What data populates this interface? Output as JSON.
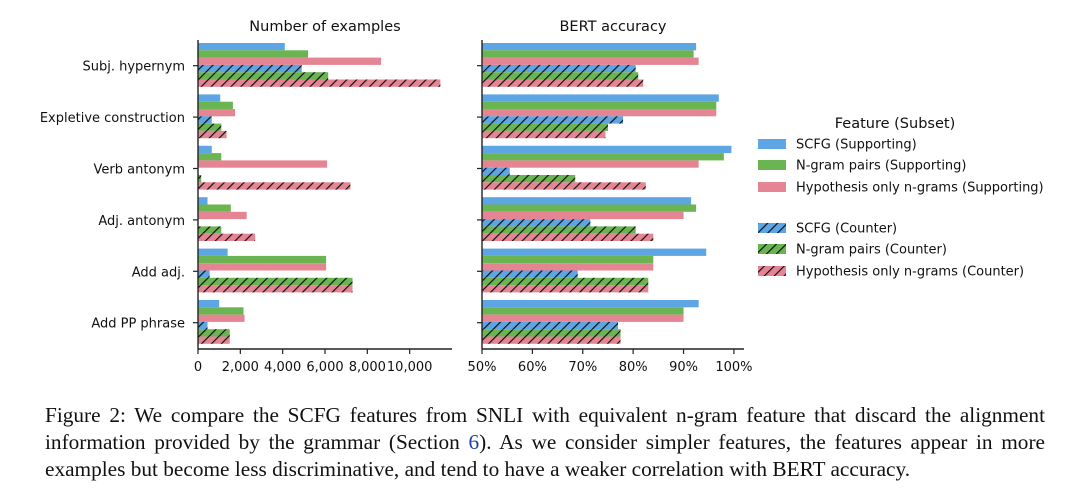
{
  "chart_data": [
    {
      "type": "bar",
      "orientation": "horizontal",
      "title": "Number of examples",
      "categories": [
        "Subj. hypernym",
        "Expletive construction",
        "Verb antonym",
        "Adj. antonym",
        "Add adj.",
        "Add PP phrase"
      ],
      "xlim": [
        0,
        12000
      ],
      "xticks": [
        0,
        2000,
        4000,
        6000,
        8000,
        10000
      ],
      "xtick_labels": [
        "0",
        "2,000",
        "4,000",
        "6,000",
        "8,000",
        "10,000"
      ],
      "series": [
        {
          "name": "SCFG (Supporting)",
          "values": [
            4100,
            1050,
            650,
            450,
            1400,
            1000
          ]
        },
        {
          "name": "N-gram pairs (Supporting)",
          "values": [
            5200,
            1650,
            1100,
            1550,
            6050,
            2150
          ]
        },
        {
          "name": "Hypothesis only n-grams (Supporting)",
          "values": [
            8650,
            1750,
            6100,
            2300,
            6050,
            2200
          ]
        },
        {
          "name": "SCFG (Counter)",
          "values": [
            4900,
            650,
            0,
            0,
            550,
            450
          ]
        },
        {
          "name": "N-gram pairs (Counter)",
          "values": [
            6150,
            1100,
            150,
            1100,
            7300,
            1500
          ]
        },
        {
          "name": "Hypothesis only n-grams (Counter)",
          "values": [
            11450,
            1350,
            7200,
            2700,
            7300,
            1500
          ]
        }
      ]
    },
    {
      "type": "bar",
      "orientation": "horizontal",
      "title": "BERT accuracy",
      "categories": [
        "Subj. hypernym",
        "Expletive construction",
        "Verb antonym",
        "Adj. antonym",
        "Add adj.",
        "Add PP phrase"
      ],
      "xlim": [
        50,
        102
      ],
      "xticks": [
        50,
        60,
        70,
        80,
        90,
        100
      ],
      "xtick_labels": [
        "50%",
        "60%",
        "70%",
        "80%",
        "90%",
        "100%"
      ],
      "series": [
        {
          "name": "SCFG (Supporting)",
          "values": [
            92.5,
            97,
            99.5,
            91.5,
            94.5,
            93
          ]
        },
        {
          "name": "N-gram pairs (Supporting)",
          "values": [
            92,
            96.5,
            98,
            92.5,
            84,
            90
          ]
        },
        {
          "name": "Hypothesis only n-grams (Supporting)",
          "values": [
            93,
            96.5,
            93,
            90,
            84,
            90
          ]
        },
        {
          "name": "SCFG (Counter)",
          "values": [
            80.5,
            78,
            55.5,
            71.5,
            69,
            77
          ]
        },
        {
          "name": "N-gram pairs (Counter)",
          "values": [
            81,
            75,
            68.5,
            80.5,
            83,
            77.5
          ]
        },
        {
          "name": "Hypothesis only n-grams (Counter)",
          "values": [
            82,
            74.5,
            82.5,
            84,
            83,
            77.5
          ]
        }
      ]
    }
  ],
  "legend": {
    "title": "Feature (Subset)",
    "placement": "right",
    "items": [
      {
        "label": "SCFG (Supporting)",
        "color": "#5da5e3",
        "hatched": false
      },
      {
        "label": "N-gram pairs (Supporting)",
        "color": "#6ab552",
        "hatched": false
      },
      {
        "label": "Hypothesis only n-grams (Supporting)",
        "color": "#e58593",
        "hatched": false
      },
      {
        "label": "SCFG (Counter)",
        "color": "#5da5e3",
        "hatched": true
      },
      {
        "label": "N-gram pairs (Counter)",
        "color": "#6ab552",
        "hatched": true
      },
      {
        "label": "Hypothesis only n-grams (Counter)",
        "color": "#e58593",
        "hatched": true
      }
    ]
  },
  "caption": {
    "prefix": "Figure 2: We compare the SCFG features from SNLI with equivalent n-gram feature that discard the alignment information provided by the grammar (Section ",
    "ref": "6",
    "suffix": ").  As we consider simpler features, the features appear in more examples but become less discriminative, and tend to have a weaker correlation with BERT accuracy."
  }
}
